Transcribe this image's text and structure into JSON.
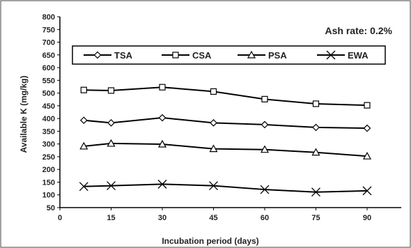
{
  "chart_data": {
    "type": "line",
    "xlabel": "Incubation period (days)",
    "ylabel": "Available K (mg/kg)",
    "annotation": "Ash rate: 0.2%",
    "xlim": [
      0,
      100
    ],
    "ylim": [
      50,
      800
    ],
    "xticks": [
      0,
      15,
      30,
      45,
      60,
      75,
      90
    ],
    "yticks": [
      50,
      100,
      150,
      200,
      250,
      300,
      350,
      400,
      450,
      500,
      550,
      600,
      650,
      700,
      750,
      800
    ],
    "grid": false,
    "legend_position": "top",
    "x": [
      7,
      15,
      30,
      45,
      60,
      75,
      90
    ],
    "series": [
      {
        "name": "TSA",
        "marker": "diamond",
        "values": [
          393,
          383,
          403,
          383,
          376,
          365,
          362
        ]
      },
      {
        "name": "CSA",
        "marker": "square",
        "values": [
          512,
          510,
          523,
          506,
          476,
          458,
          452
        ]
      },
      {
        "name": "PSA",
        "marker": "triangle",
        "values": [
          291,
          302,
          299,
          281,
          278,
          267,
          252
        ]
      },
      {
        "name": "EWA",
        "marker": "x",
        "values": [
          133,
          136,
          142,
          136,
          121,
          111,
          116
        ]
      }
    ],
    "colors": {
      "line": "#000000",
      "axis": "#000000",
      "frame": "#444444"
    }
  }
}
